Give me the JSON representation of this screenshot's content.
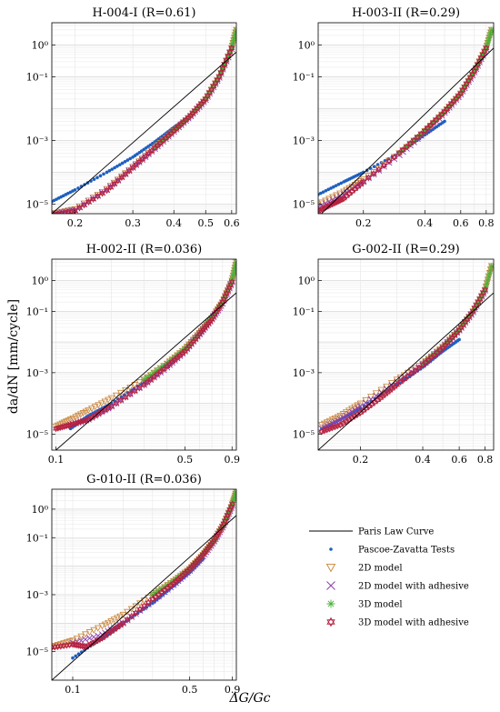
{
  "figure": {
    "ylabel": "da/dN [mm/cycle]",
    "xlabel": "ΔG/Gc"
  },
  "legend": {
    "placement": "lower-right",
    "entries": [
      {
        "label": "Paris Law Curve",
        "marker": "line",
        "color": "#000000"
      },
      {
        "label": "Pascoe-Zavatta Tests",
        "marker": "dot",
        "color": "#1f5fbf"
      },
      {
        "label": "2D model",
        "marker": "triangle-down",
        "color": "#c8843a"
      },
      {
        "label": "2D model with adhesive",
        "marker": "x",
        "color": "#8a3fb0"
      },
      {
        "label": "3D model",
        "marker": "asterisk",
        "color": "#4caf3a"
      },
      {
        "label": "3D model with adhesive",
        "marker": "hexagram",
        "color": "#b5213f"
      }
    ]
  },
  "chart_data": [
    {
      "type": "scatter",
      "title": "H-004-I (R=0.61)",
      "xscale": "log",
      "yscale": "log",
      "xlim": [
        0.17,
        0.62
      ],
      "ylim": [
        5e-06,
        5
      ],
      "xticks": [
        0.2,
        0.3,
        0.4,
        0.5,
        0.6
      ],
      "xtick_labels": [
        "0.2",
        "0.3",
        "0.4",
        "0.5",
        "0.6"
      ],
      "yticks": [
        1e-05,
        0.001,
        0.1,
        1
      ],
      "ytick_labels": [
        "10⁻⁵",
        "10⁻³",
        "10⁻¹",
        "10⁰"
      ],
      "grid": true,
      "paris_law": {
        "x": [
          0.17,
          0.62
        ],
        "y": [
          5e-06,
          0.6
        ]
      },
      "series": [
        {
          "name": "Pascoe-Zavatta Tests",
          "x": [
            0.17,
            0.2,
            0.25,
            0.3,
            0.35,
            0.4,
            0.45
          ],
          "y": [
            1.2e-05,
            2.8e-05,
            0.0001,
            0.0003,
            0.0009,
            0.0026,
            0.006
          ]
        },
        {
          "name": "2D model",
          "x": [
            0.17,
            0.2,
            0.25,
            0.3,
            0.35,
            0.4,
            0.45,
            0.5,
            0.55,
            0.6,
            0.62
          ],
          "y": [
            5e-06,
            7e-06,
            3e-05,
            0.00015,
            0.0006,
            0.002,
            0.006,
            0.02,
            0.1,
            0.8,
            3
          ]
        },
        {
          "name": "2D model with adhesive",
          "x": [
            0.17,
            0.2,
            0.25,
            0.3,
            0.35,
            0.4,
            0.45,
            0.5,
            0.55,
            0.6
          ],
          "y": [
            4.8e-06,
            6.5e-06,
            2.8e-05,
            0.00014,
            0.00055,
            0.0019,
            0.0058,
            0.019,
            0.095,
            0.75
          ]
        },
        {
          "name": "3D model",
          "x": [
            0.35,
            0.4,
            0.45,
            0.5,
            0.55,
            0.6,
            0.62
          ],
          "y": [
            0.0006,
            0.002,
            0.006,
            0.02,
            0.1,
            0.8,
            3
          ]
        },
        {
          "name": "3D model with adhesive",
          "x": [
            0.17,
            0.2,
            0.25,
            0.3,
            0.35,
            0.4,
            0.45,
            0.5,
            0.55,
            0.6
          ],
          "y": [
            4.5e-06,
            6.2e-06,
            2.7e-05,
            0.00014,
            0.00058,
            0.002,
            0.006,
            0.02,
            0.1,
            0.8
          ]
        }
      ]
    },
    {
      "type": "scatter",
      "title": "H-003-II (R=0.29)",
      "xscale": "log",
      "yscale": "log",
      "xlim": [
        0.12,
        0.87
      ],
      "ylim": [
        5e-06,
        5
      ],
      "xticks": [
        0.2,
        0.4,
        0.6,
        0.8
      ],
      "xtick_labels": [
        "0.2",
        "0.4",
        "0.6",
        "0.8"
      ],
      "yticks": [
        1e-05,
        0.001,
        0.1,
        1
      ],
      "ytick_labels": [
        "10⁻⁵",
        "10⁻³",
        "10⁻¹",
        "10⁰"
      ],
      "grid": true,
      "paris_law": {
        "x": [
          0.12,
          0.87
        ],
        "y": [
          4e-06,
          0.8
        ]
      },
      "series": [
        {
          "name": "Pascoe-Zavatta Tests",
          "x": [
            0.12,
            0.16,
            0.2,
            0.3,
            0.4,
            0.5
          ],
          "y": [
            2e-05,
            5e-05,
            0.0001,
            0.0004,
            0.0015,
            0.004
          ]
        },
        {
          "name": "2D model",
          "x": [
            0.12,
            0.16,
            0.2,
            0.3,
            0.4,
            0.5,
            0.6,
            0.7,
            0.8,
            0.85
          ],
          "y": [
            1e-05,
            2.5e-05,
            6e-05,
            0.0004,
            0.002,
            0.008,
            0.03,
            0.15,
            0.8,
            3
          ]
        },
        {
          "name": "2D model with adhesive",
          "x": [
            0.12,
            0.16,
            0.2,
            0.3,
            0.4,
            0.5,
            0.6,
            0.7,
            0.8
          ],
          "y": [
            8e-06,
            2e-05,
            5e-05,
            0.00035,
            0.0018,
            0.0075,
            0.028,
            0.14,
            0.75
          ]
        },
        {
          "name": "3D model",
          "x": [
            0.3,
            0.4,
            0.5,
            0.6,
            0.7,
            0.8,
            0.85
          ],
          "y": [
            0.0004,
            0.002,
            0.008,
            0.03,
            0.15,
            0.8,
            3
          ]
        },
        {
          "name": "3D model with adhesive",
          "x": [
            0.12,
            0.14,
            0.16,
            0.2,
            0.3,
            0.4,
            0.5,
            0.6,
            0.7,
            0.8
          ],
          "y": [
            6e-06,
            1e-05,
            1.5e-05,
            5e-05,
            0.0004,
            0.002,
            0.008,
            0.03,
            0.15,
            0.8
          ]
        }
      ]
    },
    {
      "type": "scatter",
      "title": "H-002-II (R=0.036)",
      "xscale": "log",
      "yscale": "log",
      "xlim": [
        0.095,
        0.95
      ],
      "ylim": [
        3e-06,
        5
      ],
      "xticks": [
        0.1,
        0.5,
        0.9
      ],
      "xtick_labels": [
        "0.1",
        "0.5",
        "0.9"
      ],
      "yticks": [
        1e-05,
        0.001,
        0.1,
        1
      ],
      "ytick_labels": [
        "10⁻⁵",
        "10⁻³",
        "10⁻¹",
        "10⁰"
      ],
      "grid": true,
      "paris_law": {
        "x": [
          0.1,
          0.95
        ],
        "y": [
          3e-06,
          0.4
        ]
      },
      "series": [
        {
          "name": "Pascoe-Zavatta Tests",
          "x": [
            0.12,
            0.15,
            0.2,
            0.3,
            0.4,
            0.5
          ],
          "y": [
            1.5e-05,
            4e-05,
            0.0001,
            0.0005,
            0.002,
            0.006
          ]
        },
        {
          "name": "2D model",
          "x": [
            0.1,
            0.12,
            0.15,
            0.2,
            0.3,
            0.4,
            0.5,
            0.6,
            0.7,
            0.8,
            0.9,
            0.95
          ],
          "y": [
            1.8e-05,
            3e-05,
            6e-05,
            0.00015,
            0.0006,
            0.002,
            0.006,
            0.02,
            0.06,
            0.2,
            1,
            4
          ]
        },
        {
          "name": "2D model with adhesive",
          "x": [
            0.12,
            0.15,
            0.2,
            0.3,
            0.4,
            0.5,
            0.6,
            0.7,
            0.8,
            0.9
          ],
          "y": [
            2e-05,
            3e-05,
            8e-05,
            0.0004,
            0.0015,
            0.005,
            0.018,
            0.055,
            0.18,
            0.9
          ]
        },
        {
          "name": "3D model",
          "x": [
            0.3,
            0.4,
            0.5,
            0.6,
            0.7,
            0.8,
            0.9,
            0.95
          ],
          "y": [
            0.0006,
            0.002,
            0.006,
            0.02,
            0.06,
            0.2,
            1,
            4
          ]
        },
        {
          "name": "3D model with adhesive",
          "x": [
            0.1,
            0.12,
            0.15,
            0.2,
            0.3,
            0.4,
            0.5,
            0.6,
            0.7,
            0.8,
            0.9
          ],
          "y": [
            1.5e-05,
            2e-05,
            3e-05,
            8e-05,
            0.0004,
            0.0016,
            0.005,
            0.018,
            0.055,
            0.2,
            0.9
          ]
        }
      ]
    },
    {
      "type": "scatter",
      "title": "G-002-II (R=0.29)",
      "xscale": "log",
      "yscale": "log",
      "xlim": [
        0.125,
        0.88
      ],
      "ylim": [
        3e-06,
        5
      ],
      "xticks": [
        0.2,
        0.4,
        0.6,
        0.8
      ],
      "xtick_labels": [
        "0.2",
        "0.4",
        "0.6",
        "0.8"
      ],
      "yticks": [
        1e-05,
        0.001,
        0.1,
        1
      ],
      "ytick_labels": [
        "10⁻⁵",
        "10⁻³",
        "10⁻¹",
        "10⁰"
      ],
      "grid": true,
      "paris_law": {
        "x": [
          0.125,
          0.88
        ],
        "y": [
          3e-06,
          0.4
        ]
      },
      "series": [
        {
          "name": "Pascoe-Zavatta Tests",
          "x": [
            0.13,
            0.16,
            0.2,
            0.3,
            0.4,
            0.5,
            0.6
          ],
          "y": [
            1.5e-05,
            3e-05,
            7e-05,
            0.0004,
            0.0015,
            0.005,
            0.012
          ]
        },
        {
          "name": "2D model",
          "x": [
            0.13,
            0.16,
            0.2,
            0.3,
            0.4,
            0.5,
            0.6,
            0.7,
            0.8,
            0.86
          ],
          "y": [
            2e-05,
            4e-05,
            0.0001,
            0.0006,
            0.002,
            0.007,
            0.025,
            0.1,
            0.5,
            3
          ]
        },
        {
          "name": "2D model with adhesive",
          "x": [
            0.13,
            0.16,
            0.2,
            0.3,
            0.4,
            0.5,
            0.6,
            0.7,
            0.8
          ],
          "y": [
            1.5e-05,
            3e-05,
            8e-05,
            0.0005,
            0.0018,
            0.0065,
            0.024,
            0.095,
            0.48
          ]
        },
        {
          "name": "3D model",
          "x": [
            0.4,
            0.5,
            0.6,
            0.7,
            0.8,
            0.86
          ],
          "y": [
            0.002,
            0.007,
            0.025,
            0.1,
            0.5,
            3
          ]
        },
        {
          "name": "3D model with adhesive",
          "x": [
            0.13,
            0.16,
            0.2,
            0.25,
            0.3,
            0.4,
            0.5,
            0.6,
            0.7,
            0.8
          ],
          "y": [
            1.2e-05,
            2e-05,
            5e-05,
            0.00015,
            0.0004,
            0.0018,
            0.0065,
            0.024,
            0.1,
            0.5
          ]
        }
      ]
    },
    {
      "type": "scatter",
      "title": "G-010-II (R=0.036)",
      "xscale": "log",
      "yscale": "log",
      "xlim": [
        0.075,
        0.95
      ],
      "ylim": [
        1e-06,
        5
      ],
      "xticks": [
        0.1,
        0.5,
        0.9
      ],
      "xtick_labels": [
        "0.1",
        "0.5",
        "0.9"
      ],
      "yticks": [
        1e-05,
        0.001,
        0.1,
        1
      ],
      "ytick_labels": [
        "10⁻⁵",
        "10⁻³",
        "10⁻¹",
        "10⁰"
      ],
      "grid": true,
      "paris_law": {
        "x": [
          0.075,
          0.95
        ],
        "y": [
          1e-06,
          0.6
        ]
      },
      "series": [
        {
          "name": "Pascoe-Zavatta Tests",
          "x": [
            0.1,
            0.15,
            0.2,
            0.3,
            0.4,
            0.5,
            0.6
          ],
          "y": [
            6e-06,
            3e-05,
            0.0001,
            0.0005,
            0.002,
            0.006,
            0.018
          ]
        },
        {
          "name": "2D model",
          "x": [
            0.075,
            0.1,
            0.15,
            0.2,
            0.3,
            0.4,
            0.5,
            0.6,
            0.7,
            0.8,
            0.9,
            0.95
          ],
          "y": [
            1.5e-05,
            2.5e-05,
            8e-05,
            0.0002,
            0.001,
            0.003,
            0.008,
            0.025,
            0.08,
            0.3,
            1.5,
            4
          ]
        },
        {
          "name": "2D model with adhesive",
          "x": [
            0.1,
            0.15,
            0.2,
            0.3,
            0.4,
            0.5,
            0.6,
            0.7,
            0.8,
            0.9
          ],
          "y": [
            2e-05,
            4e-05,
            0.0001,
            0.0006,
            0.0022,
            0.007,
            0.022,
            0.075,
            0.28,
            1.4
          ]
        },
        {
          "name": "3D model",
          "x": [
            0.3,
            0.4,
            0.5,
            0.6,
            0.7,
            0.8,
            0.9,
            0.95
          ],
          "y": [
            0.001,
            0.003,
            0.008,
            0.025,
            0.08,
            0.3,
            1.5,
            4
          ]
        },
        {
          "name": "3D model with adhesive",
          "x": [
            0.075,
            0.1,
            0.12,
            0.15,
            0.2,
            0.3,
            0.4,
            0.5,
            0.6,
            0.7,
            0.8,
            0.9
          ],
          "y": [
            1.4e-05,
            1.8e-05,
            1.5e-05,
            3e-05,
            0.0001,
            0.0007,
            0.0025,
            0.008,
            0.025,
            0.08,
            0.3,
            1.5
          ]
        }
      ]
    }
  ]
}
